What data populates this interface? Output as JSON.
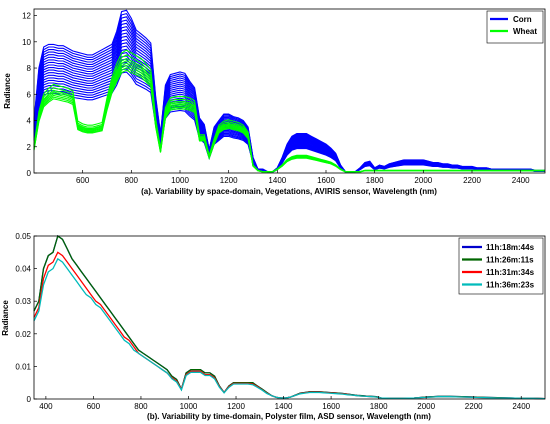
{
  "chart_data": [
    {
      "type": "line",
      "xlabel": "(a). Variability by space-domain, Vegetations, AVIRIS sensor, Wavelength (nm)",
      "ylabel": "Radiance",
      "xlim": [
        400,
        2500
      ],
      "ylim": [
        0,
        12.5
      ],
      "xticks": [
        600,
        800,
        1000,
        1200,
        1400,
        1600,
        1800,
        2000,
        2200,
        2400
      ],
      "yticks": [
        0,
        2,
        4,
        6,
        8,
        10,
        12
      ],
      "legend_position": "top-right",
      "grid": false,
      "x": [
        400,
        420,
        440,
        460,
        480,
        500,
        520,
        540,
        560,
        580,
        600,
        620,
        640,
        660,
        680,
        700,
        720,
        740,
        760,
        780,
        800,
        820,
        840,
        860,
        880,
        900,
        920,
        940,
        960,
        980,
        1000,
        1020,
        1040,
        1060,
        1080,
        1100,
        1120,
        1140,
        1160,
        1180,
        1200,
        1220,
        1240,
        1260,
        1280,
        1300,
        1320,
        1340,
        1360,
        1380,
        1400,
        1420,
        1440,
        1460,
        1480,
        1500,
        1520,
        1540,
        1560,
        1580,
        1600,
        1620,
        1640,
        1660,
        1680,
        1700,
        1720,
        1740,
        1760,
        1780,
        1800,
        1820,
        1840,
        1860,
        1880,
        1900,
        1920,
        1940,
        1960,
        1980,
        2000,
        2020,
        2040,
        2060,
        2080,
        2100,
        2120,
        2140,
        2160,
        2180,
        2200,
        2220,
        2240,
        2260,
        2280,
        2300,
        2320,
        2340,
        2360,
        2380,
        2400,
        2420,
        2440,
        2460,
        2480,
        2500
      ],
      "series": [
        {
          "name": "Corn",
          "color": "#0000ff",
          "values": [
            4.0,
            8.0,
            9.6,
            9.8,
            9.8,
            9.7,
            9.7,
            9.5,
            9.3,
            9.2,
            9.1,
            9.0,
            9.0,
            9.2,
            9.4,
            9.6,
            9.8,
            10.8,
            12.3,
            12.4,
            11.8,
            10.9,
            10.6,
            10.3,
            9.9,
            5.8,
            3.0,
            6.7,
            7.5,
            7.6,
            7.7,
            7.6,
            7.0,
            6.5,
            4.2,
            3.7,
            1.8,
            3.5,
            4.0,
            4.5,
            4.5,
            4.3,
            4.2,
            4.0,
            3.5,
            1.2,
            0.3,
            0.3,
            0.1,
            0.1,
            0.4,
            1.2,
            2.2,
            2.8,
            3.0,
            3.0,
            3.0,
            2.8,
            2.6,
            2.4,
            2.2,
            1.9,
            1.5,
            0.6,
            0.1,
            0.1,
            0.1,
            0.4,
            0.8,
            0.9,
            0.4,
            0.6,
            0.5,
            0.7,
            0.8,
            0.9,
            1.0,
            1.0,
            1.0,
            1.0,
            1.0,
            0.9,
            0.8,
            0.8,
            0.7,
            0.7,
            0.6,
            0.6,
            0.5,
            0.5,
            0.5,
            0.4,
            0.4,
            0.4,
            0.3,
            0.3,
            0.3,
            0.3,
            0.3,
            0.3,
            0.3,
            0.3,
            0.3,
            0.2,
            0.2,
            0.2
          ]
        },
        {
          "name": "Wheat",
          "color": "#00ff00",
          "values": [
            2.0,
            4.5,
            5.8,
            6.2,
            6.5,
            6.4,
            6.3,
            6.2,
            6.0,
            3.8,
            3.6,
            3.5,
            3.5,
            3.6,
            3.7,
            5.5,
            7.0,
            8.0,
            8.8,
            9.0,
            8.8,
            8.6,
            8.4,
            8.0,
            7.6,
            4.0,
            1.8,
            4.8,
            5.5,
            5.6,
            5.6,
            5.6,
            5.5,
            5.3,
            2.8,
            2.8,
            1.3,
            2.5,
            3.5,
            3.8,
            3.9,
            3.8,
            3.7,
            3.5,
            3.0,
            0.6,
            0.2,
            0.1,
            0.1,
            0.1,
            0.3,
            0.6,
            1.0,
            1.2,
            1.3,
            1.3,
            1.3,
            1.2,
            1.1,
            1.0,
            0.9,
            0.8,
            0.6,
            0.3,
            0.1,
            0.1,
            0.1,
            0.1,
            0.2,
            0.2,
            0.2,
            0.2,
            0.2,
            0.2,
            0.2,
            0.2,
            0.2,
            0.2,
            0.2,
            0.2,
            0.2,
            0.2,
            0.2,
            0.2,
            0.2,
            0.2,
            0.2,
            0.2,
            0.2,
            0.2,
            0.2,
            0.2,
            0.2,
            0.2,
            0.2,
            0.2,
            0.2,
            0.2,
            0.2,
            0.2,
            0.2,
            0.2,
            0.2,
            0.2,
            0.2,
            0.2
          ]
        }
      ]
    },
    {
      "type": "line",
      "xlabel": "(b). Variability by time-domain, Polyster film, ASD sensor, Wavelength (nm)",
      "ylabel": "Radiance",
      "xlim": [
        350,
        2500
      ],
      "ylim": [
        0,
        0.05
      ],
      "xticks": [
        400,
        600,
        800,
        1000,
        1200,
        1400,
        1600,
        1800,
        2000,
        2200,
        2400
      ],
      "yticks": [
        0,
        0.01,
        0.02,
        0.03,
        0.04,
        0.05
      ],
      "ytick_labels": [
        "0",
        "0.01",
        "0.02",
        "0.03",
        "0.04",
        "0.05"
      ],
      "legend_position": "top-right",
      "grid": false,
      "x": [
        350,
        370,
        390,
        410,
        430,
        450,
        470,
        490,
        510,
        530,
        550,
        570,
        590,
        610,
        630,
        650,
        670,
        690,
        710,
        730,
        750,
        770,
        790,
        810,
        830,
        850,
        870,
        890,
        910,
        930,
        950,
        970,
        990,
        1010,
        1030,
        1050,
        1070,
        1090,
        1110,
        1130,
        1150,
        1170,
        1190,
        1210,
        1230,
        1250,
        1270,
        1290,
        1310,
        1330,
        1350,
        1370,
        1390,
        1410,
        1430,
        1450,
        1470,
        1490,
        1510,
        1530,
        1550,
        1570,
        1590,
        1610,
        1630,
        1650,
        1670,
        1690,
        1710,
        1730,
        1750,
        1770,
        1790,
        1810,
        1850,
        1900,
        1950,
        2000,
        2050,
        2100,
        2150,
        2200,
        2250,
        2300,
        2350,
        2400,
        2450,
        2500
      ],
      "series": [
        {
          "name": "11h:18m:44s",
          "color": "#0000cc",
          "values": [
            0.027,
            0.03,
            0.04,
            0.044,
            0.045,
            0.05,
            0.049,
            0.046,
            0.043,
            0.041,
            0.039,
            0.037,
            0.035,
            0.033,
            0.031,
            0.029,
            0.027,
            0.025,
            0.023,
            0.021,
            0.019,
            0.017,
            0.015,
            0.014,
            0.013,
            0.012,
            0.011,
            0.01,
            0.009,
            0.007,
            0.006,
            0.003,
            0.008,
            0.009,
            0.009,
            0.009,
            0.008,
            0.008,
            0.007,
            0.004,
            0.002,
            0.004,
            0.005,
            0.005,
            0.005,
            0.005,
            0.005,
            0.004,
            0.003,
            0.002,
            0.001,
            0.0005,
            0.0003,
            0.0003,
            0.0006,
            0.0012,
            0.0018,
            0.002,
            0.0022,
            0.0022,
            0.0022,
            0.0021,
            0.002,
            0.0019,
            0.0018,
            0.0017,
            0.0015,
            0.0013,
            0.0011,
            0.001,
            0.0009,
            0.0008,
            0.0007,
            0.0003,
            0.0002,
            0.0002,
            0.0003,
            0.0006,
            0.0008,
            0.0008,
            0.0007,
            0.0006,
            0.0005,
            0.0004,
            0.0003,
            0.0002,
            0.0002,
            0.0001
          ]
        },
        {
          "name": "11h:26m:11s",
          "color": "#006600",
          "values": [
            0.027,
            0.03,
            0.04,
            0.044,
            0.045,
            0.05,
            0.049,
            0.046,
            0.043,
            0.041,
            0.039,
            0.037,
            0.035,
            0.033,
            0.031,
            0.029,
            0.027,
            0.025,
            0.023,
            0.021,
            0.019,
            0.017,
            0.015,
            0.014,
            0.013,
            0.012,
            0.011,
            0.01,
            0.009,
            0.007,
            0.006,
            0.003,
            0.008,
            0.009,
            0.009,
            0.009,
            0.008,
            0.008,
            0.007,
            0.004,
            0.002,
            0.004,
            0.005,
            0.005,
            0.005,
            0.005,
            0.005,
            0.004,
            0.003,
            0.002,
            0.001,
            0.0005,
            0.0003,
            0.0003,
            0.0006,
            0.0012,
            0.0018,
            0.002,
            0.0022,
            0.0022,
            0.0022,
            0.0021,
            0.002,
            0.0019,
            0.0018,
            0.0017,
            0.0015,
            0.0013,
            0.0011,
            0.001,
            0.0009,
            0.0008,
            0.0007,
            0.0003,
            0.0002,
            0.0002,
            0.0003,
            0.0006,
            0.0008,
            0.0008,
            0.0007,
            0.0006,
            0.0005,
            0.0004,
            0.0003,
            0.0002,
            0.0002,
            0.0001
          ]
        },
        {
          "name": "11h:31m:34s",
          "color": "#ff0000",
          "values": [
            0.025,
            0.028,
            0.037,
            0.041,
            0.042,
            0.045,
            0.044,
            0.042,
            0.04,
            0.038,
            0.036,
            0.034,
            0.032,
            0.03,
            0.029,
            0.027,
            0.025,
            0.023,
            0.021,
            0.019,
            0.018,
            0.016,
            0.014,
            0.013,
            0.012,
            0.011,
            0.01,
            0.009,
            0.008,
            0.0065,
            0.0055,
            0.003,
            0.0075,
            0.0085,
            0.0085,
            0.0085,
            0.0075,
            0.0075,
            0.0065,
            0.0038,
            0.002,
            0.0038,
            0.0048,
            0.0048,
            0.0048,
            0.0048,
            0.0046,
            0.0038,
            0.0028,
            0.0018,
            0.001,
            0.0005,
            0.0003,
            0.0003,
            0.0006,
            0.0011,
            0.0017,
            0.0019,
            0.0021,
            0.0021,
            0.0021,
            0.002,
            0.0019,
            0.0018,
            0.0017,
            0.0016,
            0.0014,
            0.0012,
            0.001,
            0.0009,
            0.0008,
            0.0007,
            0.0006,
            0.0003,
            0.0002,
            0.0002,
            0.0003,
            0.0005,
            0.0007,
            0.0007,
            0.0006,
            0.0005,
            0.0004,
            0.0003,
            0.0003,
            0.0002,
            0.0002,
            0.0001
          ]
        },
        {
          "name": "11h:36m:23s",
          "color": "#00bbbb",
          "values": [
            0.024,
            0.027,
            0.035,
            0.039,
            0.04,
            0.043,
            0.042,
            0.04,
            0.038,
            0.036,
            0.034,
            0.032,
            0.031,
            0.029,
            0.028,
            0.026,
            0.024,
            0.022,
            0.02,
            0.018,
            0.017,
            0.015,
            0.014,
            0.013,
            0.012,
            0.011,
            0.01,
            0.009,
            0.008,
            0.0062,
            0.0052,
            0.0028,
            0.0072,
            0.0082,
            0.0082,
            0.0082,
            0.0072,
            0.0072,
            0.0062,
            0.0036,
            0.0019,
            0.0036,
            0.0046,
            0.0046,
            0.0046,
            0.0046,
            0.0044,
            0.0036,
            0.0027,
            0.0017,
            0.001,
            0.0005,
            0.0003,
            0.0003,
            0.0006,
            0.0011,
            0.0016,
            0.0018,
            0.002,
            0.002,
            0.002,
            0.0019,
            0.0018,
            0.0017,
            0.0016,
            0.0015,
            0.0013,
            0.0012,
            0.001,
            0.0009,
            0.0008,
            0.0007,
            0.0006,
            0.0003,
            0.0002,
            0.0002,
            0.0003,
            0.0005,
            0.0007,
            0.0007,
            0.0006,
            0.0005,
            0.0004,
            0.0003,
            0.0003,
            0.0002,
            0.0002,
            0.0001
          ]
        }
      ]
    }
  ]
}
